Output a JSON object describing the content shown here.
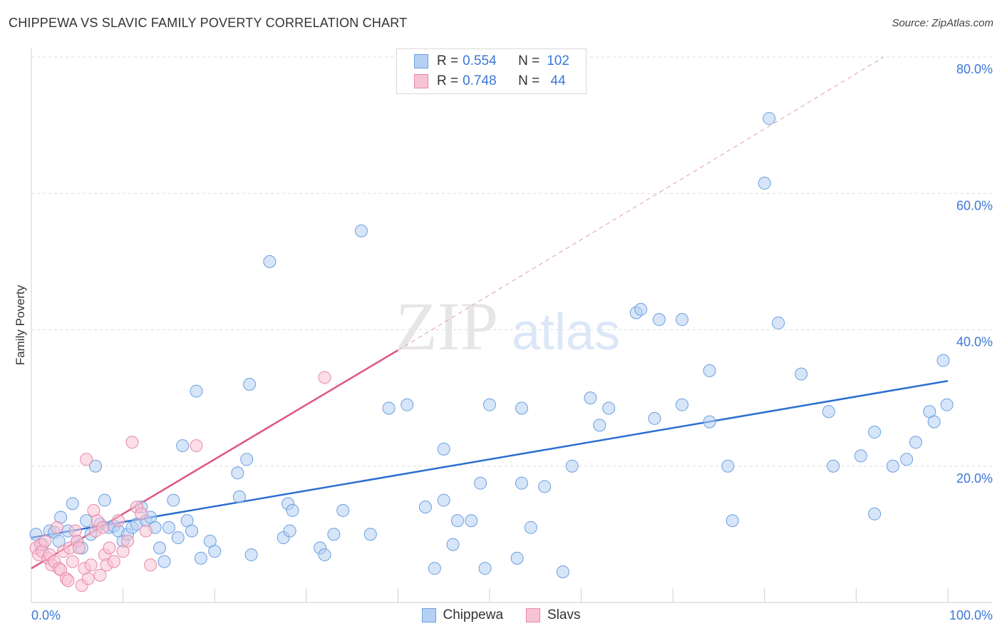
{
  "title": "CHIPPEWA VS SLAVIC FAMILY POVERTY CORRELATION CHART",
  "source": "Source: ZipAtlas.com",
  "watermark": {
    "zip": "ZIP",
    "atlas": "atlas"
  },
  "legend": {
    "rows": [
      {
        "r_label": "R =",
        "r_value": "0.554",
        "n_label": "N =",
        "n_value": "102",
        "color": "#a9c8f0"
      },
      {
        "r_label": "R =",
        "r_value": "0.748",
        "n_label": "N =",
        "n_value": " 44",
        "color": "#f4b7c9"
      }
    ]
  },
  "bottom_legend": [
    "Chippewa",
    "Slavs"
  ],
  "chart_data": {
    "type": "scatter",
    "ylabel": "Family Poverty",
    "xlim": [
      0,
      100
    ],
    "ylim": [
      0,
      80
    ],
    "x_tick_labels": [
      "0.0%",
      "100.0%"
    ],
    "y_ticks": [
      20,
      40,
      60,
      80
    ],
    "y_tick_labels": [
      "20.0%",
      "40.0%",
      "60.0%",
      "80.0%"
    ],
    "grid": true,
    "series": [
      {
        "name": "Chippewa",
        "color": "#6a9fe0",
        "fill": "#b6d0f3",
        "trend": {
          "x": [
            0,
            100
          ],
          "y": [
            9.5,
            32.5
          ],
          "color": "#2b6fd0"
        },
        "points": [
          [
            0.5,
            10.0
          ],
          [
            1.2,
            8.5
          ],
          [
            2.0,
            10.5
          ],
          [
            2.5,
            10.3
          ],
          [
            3.0,
            9.0
          ],
          [
            3.2,
            12.5
          ],
          [
            4.0,
            10.5
          ],
          [
            4.5,
            14.5
          ],
          [
            5.0,
            9.0
          ],
          [
            5.5,
            8.0
          ],
          [
            6.0,
            12.0
          ],
          [
            6.5,
            10.0
          ],
          [
            7.0,
            20.0
          ],
          [
            7.5,
            11.5
          ],
          [
            8.0,
            15.0
          ],
          [
            8.5,
            11.0
          ],
          [
            9.0,
            11.2
          ],
          [
            9.5,
            10.5
          ],
          [
            10.0,
            9.0
          ],
          [
            10.5,
            10.0
          ],
          [
            11.0,
            11.0
          ],
          [
            11.5,
            11.5
          ],
          [
            12.0,
            14.0
          ],
          [
            12.5,
            12.0
          ],
          [
            13.0,
            12.5
          ],
          [
            13.5,
            11.0
          ],
          [
            14.0,
            8.0
          ],
          [
            14.5,
            6.0
          ],
          [
            15.0,
            11.0
          ],
          [
            15.5,
            15.0
          ],
          [
            16.0,
            9.5
          ],
          [
            16.5,
            23.0
          ],
          [
            17.0,
            12.0
          ],
          [
            17.5,
            10.5
          ],
          [
            18.0,
            31.0
          ],
          [
            18.5,
            6.5
          ],
          [
            19.5,
            9.0
          ],
          [
            20.0,
            7.5
          ],
          [
            22.5,
            19.0
          ],
          [
            22.7,
            15.5
          ],
          [
            23.5,
            21.0
          ],
          [
            23.8,
            32.0
          ],
          [
            24.0,
            7.0
          ],
          [
            26.0,
            50.0
          ],
          [
            27.5,
            9.5
          ],
          [
            28.0,
            14.5
          ],
          [
            28.5,
            13.5
          ],
          [
            28.2,
            10.5
          ],
          [
            31.5,
            8.0
          ],
          [
            32.0,
            7.0
          ],
          [
            33.0,
            10.0
          ],
          [
            34.0,
            13.5
          ],
          [
            36.0,
            54.5
          ],
          [
            37.0,
            10.0
          ],
          [
            39.0,
            28.5
          ],
          [
            41.0,
            29.0
          ],
          [
            43.0,
            14.0
          ],
          [
            44.0,
            5.0
          ],
          [
            45.0,
            15.0
          ],
          [
            45.0,
            22.5
          ],
          [
            46.0,
            8.5
          ],
          [
            46.5,
            12.0
          ],
          [
            48.0,
            12.0
          ],
          [
            49.0,
            17.5
          ],
          [
            49.5,
            5.0
          ],
          [
            50.0,
            29.0
          ],
          [
            53.0,
            6.5
          ],
          [
            53.5,
            17.5
          ],
          [
            53.5,
            28.5
          ],
          [
            54.5,
            11.0
          ],
          [
            56.0,
            17.0
          ],
          [
            58.0,
            4.5
          ],
          [
            59.0,
            20.0
          ],
          [
            61.0,
            30.0
          ],
          [
            62.0,
            26.0
          ],
          [
            63.0,
            28.5
          ],
          [
            66.0,
            42.5
          ],
          [
            66.5,
            43.0
          ],
          [
            68.0,
            27.0
          ],
          [
            68.5,
            41.5
          ],
          [
            71.0,
            41.5
          ],
          [
            71.0,
            29.0
          ],
          [
            74.0,
            34.0
          ],
          [
            74.0,
            26.5
          ],
          [
            76.0,
            20.0
          ],
          [
            76.5,
            12.0
          ],
          [
            80.0,
            61.5
          ],
          [
            80.5,
            71.0
          ],
          [
            81.5,
            41.0
          ],
          [
            84.0,
            33.5
          ],
          [
            87.0,
            28.0
          ],
          [
            87.5,
            20.0
          ],
          [
            90.5,
            21.5
          ],
          [
            92.0,
            13.0
          ],
          [
            92.0,
            25.0
          ],
          [
            94.0,
            20.0
          ],
          [
            95.5,
            21.0
          ],
          [
            96.5,
            23.5
          ],
          [
            98.0,
            28.0
          ],
          [
            98.5,
            26.5
          ],
          [
            99.5,
            35.5
          ],
          [
            99.9,
            29.0
          ]
        ]
      },
      {
        "name": "Slavs",
        "color": "#e888a8",
        "fill": "#f7c3d3",
        "trend": {
          "x": [
            0,
            40
          ],
          "y": [
            5.0,
            37.0
          ],
          "color": "#e0557f"
        },
        "trend_dashed": {
          "x": [
            40,
            93
          ],
          "y": [
            37.0,
            80.0
          ],
          "color": "#e09aae"
        },
        "points": [
          [
            0.5,
            8.0
          ],
          [
            0.8,
            7.0
          ],
          [
            1.0,
            8.5
          ],
          [
            1.2,
            7.5
          ],
          [
            1.5,
            9.0
          ],
          [
            1.8,
            6.5
          ],
          [
            2.0,
            7.0
          ],
          [
            2.2,
            5.5
          ],
          [
            2.5,
            6.0
          ],
          [
            2.8,
            11.0
          ],
          [
            3.0,
            5.0
          ],
          [
            3.2,
            4.8
          ],
          [
            3.5,
            7.5
          ],
          [
            3.8,
            3.5
          ],
          [
            4.0,
            3.2
          ],
          [
            4.2,
            8.0
          ],
          [
            4.5,
            6.0
          ],
          [
            4.8,
            10.5
          ],
          [
            5.0,
            9.0
          ],
          [
            5.2,
            8.0
          ],
          [
            5.5,
            2.5
          ],
          [
            5.8,
            5.0
          ],
          [
            6.0,
            21.0
          ],
          [
            6.2,
            3.5
          ],
          [
            6.5,
            5.5
          ],
          [
            6.8,
            13.5
          ],
          [
            7.0,
            10.5
          ],
          [
            7.2,
            12.0
          ],
          [
            7.5,
            4.0
          ],
          [
            7.8,
            11.0
          ],
          [
            8.0,
            7.0
          ],
          [
            8.2,
            5.5
          ],
          [
            8.5,
            8.0
          ],
          [
            9.0,
            6.0
          ],
          [
            9.5,
            12.0
          ],
          [
            10.0,
            7.5
          ],
          [
            10.5,
            9.0
          ],
          [
            11.0,
            23.5
          ],
          [
            11.5,
            14.0
          ],
          [
            12.0,
            13.0
          ],
          [
            12.5,
            10.5
          ],
          [
            13.0,
            5.5
          ],
          [
            18.0,
            23.0
          ],
          [
            32.0,
            33.0
          ]
        ]
      }
    ]
  }
}
